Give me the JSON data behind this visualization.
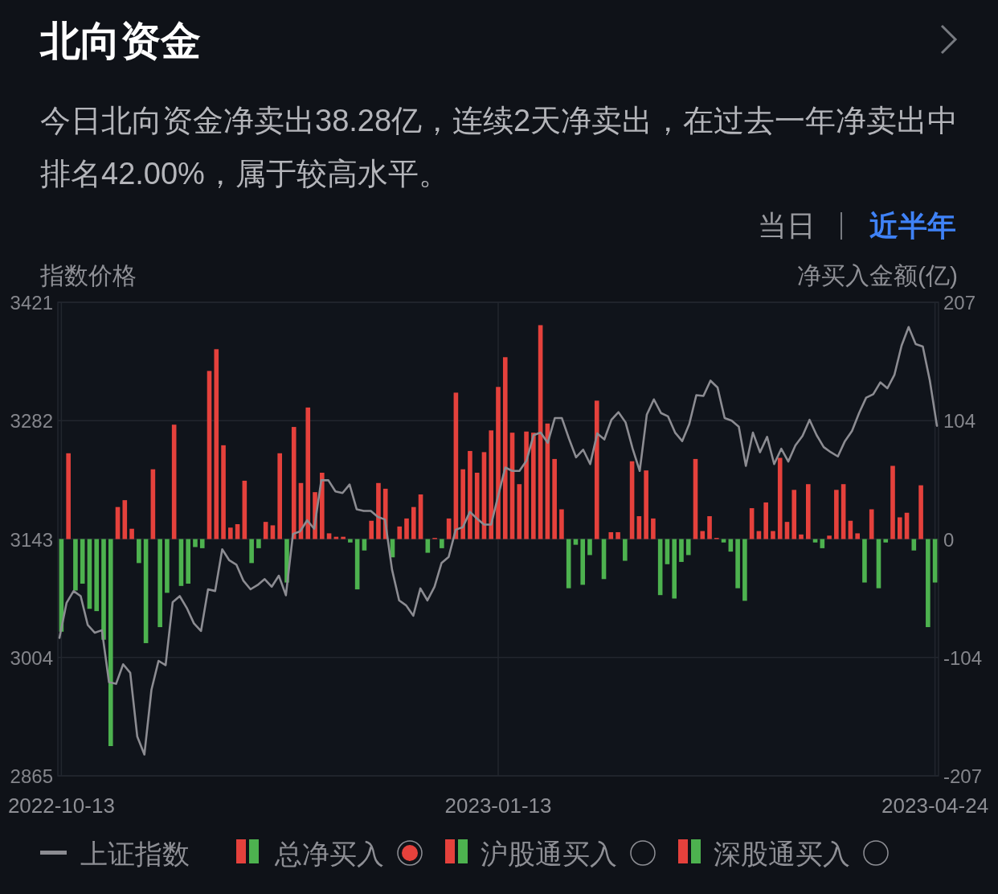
{
  "chart_data": {
    "type": "bar",
    "title": "北向资金",
    "subtitle": "今日北向资金净卖出38.28亿，连续2天净卖出，在过去一年净卖出中排名42.00%，属于较高水平。",
    "ylabel": "指数价格",
    "y2label": "净买入金额(亿)",
    "annotations": [
      "当日",
      "近半年",
      "沪股通买入",
      "深股通买入"
    ],
    "categories": [
      "2022-10-13",
      null,
      null,
      null,
      null,
      null,
      null,
      null,
      null,
      null,
      null,
      null,
      null,
      null,
      null,
      null,
      null,
      null,
      null,
      null,
      null,
      null,
      null,
      null,
      null,
      null,
      null,
      null,
      null,
      null,
      null,
      null,
      null,
      null,
      null,
      null,
      null,
      null,
      null,
      null,
      null,
      null,
      null,
      null,
      null,
      null,
      null,
      null,
      null,
      null,
      null,
      null,
      null,
      null,
      null,
      null,
      null,
      null,
      null,
      null,
      null,
      null,
      "2023-01-13",
      null,
      null,
      null,
      null,
      null,
      null,
      null,
      null,
      null,
      null,
      null,
      null,
      null,
      null,
      null,
      null,
      null,
      null,
      null,
      null,
      null,
      null,
      null,
      null,
      null,
      null,
      null,
      null,
      null,
      null,
      null,
      null,
      null,
      null,
      null,
      null,
      null,
      null,
      null,
      null,
      null,
      null,
      null,
      null,
      null,
      null,
      null,
      null,
      null,
      null,
      null,
      null,
      null,
      null,
      null,
      null,
      null,
      null,
      null,
      null,
      null,
      "2023-04-24"
    ],
    "series": [
      {
        "name": "上证指数",
        "type": "line",
        "axis": "y",
        "color": "#8c8c92",
        "values": [
          3027,
          3068,
          3082,
          3076,
          3042,
          3033,
          3036,
          2975,
          2973,
          2996,
          2986,
          2911,
          2890,
          2966,
          3000,
          2995,
          3069,
          3076,
          3062,
          3044,
          3035,
          3084,
          3082,
          3131,
          3118,
          3113,
          3094,
          3084,
          3089,
          3096,
          3087,
          3100,
          3077,
          3149,
          3152,
          3165,
          3155,
          3212,
          3212,
          3199,
          3197,
          3207,
          3178,
          3176,
          3176,
          3169,
          3166,
          3107,
          3071,
          3065,
          3053,
          3085,
          3071,
          3087,
          3115,
          3122,
          3154,
          3157,
          3175,
          3167,
          3160,
          3160,
          3194,
          3227,
          3223,
          3223,
          3235,
          3265,
          3268,
          3256,
          3285,
          3285,
          3261,
          3239,
          3248,
          3231,
          3267,
          3260,
          3283,
          3292,
          3280,
          3249,
          3223,
          3289,
          3307,
          3291,
          3287,
          3268,
          3258,
          3278,
          3312,
          3311,
          3329,
          3321,
          3285,
          3282,
          3275,
          3229,
          3268,
          3245,
          3263,
          3231,
          3249,
          3234,
          3253,
          3264,
          3283,
          3265,
          3251,
          3245,
          3240,
          3258,
          3270,
          3291,
          3309,
          3313,
          3327,
          3320,
          3336,
          3370,
          3392,
          3372,
          3369,
          3329,
          3276
        ]
      },
      {
        "name": "总净买入",
        "type": "bar",
        "axis": "y2",
        "values": [
          -81,
          75,
          -45,
          -39,
          -61,
          -63,
          -88,
          -181,
          28,
          34,
          9,
          -21,
          -91,
          61,
          -77,
          -47,
          100,
          -41,
          -39,
          -7,
          -8,
          147,
          166,
          82,
          10,
          13,
          51,
          -21,
          -8,
          15,
          12,
          75,
          -38,
          98,
          49,
          115,
          41,
          58,
          5,
          2,
          2,
          -3,
          -44,
          -10,
          16,
          49,
          44,
          -16,
          11,
          18,
          28,
          39,
          -12,
          1,
          -8,
          18,
          128,
          61,
          77,
          58,
          76,
          95,
          133,
          159,
          93,
          48,
          94,
          93,
          187,
          101,
          70,
          26,
          -43,
          -5,
          -40,
          -14,
          121,
          -35,
          6,
          6,
          -19,
          68,
          20,
          60,
          18,
          -49,
          -22,
          -52,
          -20,
          -14,
          70,
          7,
          20,
          1,
          -3,
          -11,
          -43,
          -54,
          27,
          7,
          32,
          7,
          71,
          15,
          43,
          4,
          48,
          -3,
          -8,
          3,
          43,
          48,
          16,
          5,
          -38,
          26,
          -43,
          -3,
          64,
          19,
          23,
          -10,
          47,
          -77,
          -38
        ],
        "colors": [
          "#4db24f",
          "#e5413c",
          "#4db24f",
          "#4db24f",
          "#4db24f",
          "#4db24f",
          "#4db24f",
          "#4db24f",
          "#e5413c",
          "#e5413c",
          "#e5413c",
          "#4db24f",
          "#4db24f",
          "#e5413c",
          "#4db24f",
          "#4db24f",
          "#e5413c",
          "#4db24f",
          "#4db24f",
          "#4db24f",
          "#4db24f",
          "#e5413c",
          "#e5413c",
          "#e5413c",
          "#e5413c",
          "#e5413c",
          "#e5413c",
          "#4db24f",
          "#4db24f",
          "#e5413c",
          "#e5413c",
          "#e5413c",
          "#4db24f",
          "#e5413c",
          "#e5413c",
          "#e5413c",
          "#e5413c",
          "#e5413c",
          "#e5413c",
          "#e5413c",
          "#e5413c",
          "#4db24f",
          "#4db24f",
          "#4db24f",
          "#e5413c",
          "#e5413c",
          "#e5413c",
          "#4db24f",
          "#e5413c",
          "#e5413c",
          "#e5413c",
          "#e5413c",
          "#4db24f",
          "#e5413c",
          "#4db24f",
          "#e5413c",
          "#e5413c",
          "#e5413c",
          "#e5413c",
          "#e5413c",
          "#e5413c",
          "#e5413c",
          "#e5413c",
          "#e5413c",
          "#e5413c",
          "#e5413c",
          "#e5413c",
          "#e5413c",
          "#e5413c",
          "#e5413c",
          "#e5413c",
          "#e5413c",
          "#4db24f",
          "#4db24f",
          "#4db24f",
          "#4db24f",
          "#e5413c",
          "#4db24f",
          "#e5413c",
          "#e5413c",
          "#4db24f",
          "#e5413c",
          "#e5413c",
          "#e5413c",
          "#e5413c",
          "#4db24f",
          "#4db24f",
          "#4db24f",
          "#4db24f",
          "#4db24f",
          "#e5413c",
          "#e5413c",
          "#e5413c",
          "#e5413c",
          "#4db24f",
          "#4db24f",
          "#4db24f",
          "#4db24f",
          "#e5413c",
          "#e5413c",
          "#e5413c",
          "#e5413c",
          "#e5413c",
          "#e5413c",
          "#e5413c",
          "#e5413c",
          "#e5413c",
          "#4db24f",
          "#4db24f",
          "#e5413c",
          "#e5413c",
          "#e5413c",
          "#e5413c",
          "#e5413c",
          "#4db24f",
          "#e5413c",
          "#4db24f",
          "#4db24f",
          "#e5413c",
          "#e5413c",
          "#e5413c",
          "#4db24f",
          "#e5413c",
          "#4db24f",
          "#4db24f"
        ]
      }
    ],
    "ylim": [
      2865,
      3421
    ],
    "yticks": [
      3421,
      3282,
      3143,
      3004,
      2865
    ],
    "y2lim": [
      -207,
      207
    ],
    "y2ticks": [
      207,
      104,
      0,
      -104,
      -207
    ],
    "grid": true,
    "legend": "bottom"
  }
}
